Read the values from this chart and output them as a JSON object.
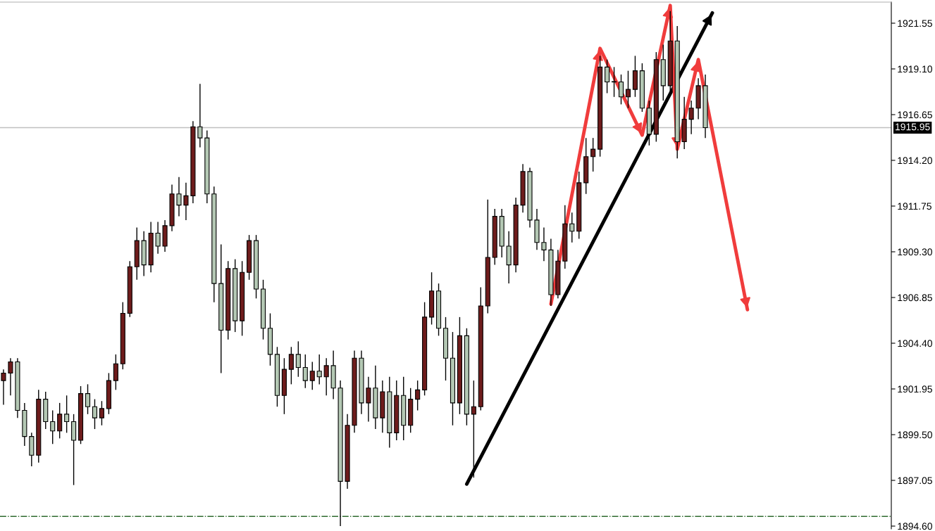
{
  "chart_data": {
    "type": "candlestick",
    "categories": [
      null,
      null,
      null,
      null,
      null,
      null,
      null,
      null,
      null,
      null,
      null,
      null,
      null,
      null,
      null,
      null,
      null,
      null,
      null,
      null,
      null,
      null,
      null,
      null,
      null,
      null,
      null,
      null,
      null,
      null,
      null,
      null,
      null,
      null,
      null,
      null,
      null,
      null,
      null,
      null,
      null,
      null,
      null,
      null,
      null,
      null,
      null,
      null,
      null,
      null,
      null,
      null,
      null,
      null,
      null,
      null,
      null,
      null,
      null,
      null,
      null,
      null,
      null,
      null,
      null,
      null,
      null,
      null,
      null,
      null,
      null,
      null,
      null,
      null,
      null,
      null,
      null,
      null,
      null,
      null,
      null,
      null,
      null,
      null,
      null,
      null,
      null,
      null,
      null,
      null,
      null,
      null,
      null,
      null,
      null,
      null,
      null,
      null,
      null,
      null,
      null,
      null,
      null,
      null,
      null,
      null,
      null,
      null,
      null,
      null,
      null,
      null,
      null,
      null,
      null,
      null,
      null,
      null,
      null,
      null,
      null,
      null,
      null,
      null,
      null,
      null,
      null
    ],
    "ohlc": [
      [
        1902.4,
        1903.0,
        1901.1,
        1902.8
      ],
      [
        1902.8,
        1903.6,
        1901.6,
        1903.4
      ],
      [
        1903.4,
        1903.6,
        1900.4,
        1900.8
      ],
      [
        1900.8,
        1901.2,
        1898.9,
        1899.4
      ],
      [
        1899.4,
        1899.6,
        1897.8,
        1898.4
      ],
      [
        1898.4,
        1901.9,
        1898.0,
        1901.4
      ],
      [
        1901.4,
        1901.8,
        1899.8,
        1900.2
      ],
      [
        1900.2,
        1900.8,
        1899.0,
        1899.7
      ],
      [
        1899.7,
        1901.2,
        1899.3,
        1900.6
      ],
      [
        1900.6,
        1901.6,
        1899.6,
        1900.2
      ],
      [
        1900.2,
        1900.6,
        1896.8,
        1899.2
      ],
      [
        1899.2,
        1902.1,
        1899.0,
        1901.7
      ],
      [
        1901.7,
        1902.2,
        1900.6,
        1901.0
      ],
      [
        1901.0,
        1901.4,
        1899.8,
        1900.4
      ],
      [
        1900.4,
        1901.3,
        1900.0,
        1900.9
      ],
      [
        1900.9,
        1902.8,
        1900.6,
        1902.4
      ],
      [
        1902.4,
        1903.8,
        1901.9,
        1903.3
      ],
      [
        1903.3,
        1906.6,
        1903.0,
        1906.0
      ],
      [
        1906.0,
        1908.8,
        1905.8,
        1908.5
      ],
      [
        1908.5,
        1910.6,
        1907.8,
        1909.9
      ],
      [
        1909.9,
        1910.4,
        1908.0,
        1908.6
      ],
      [
        1908.6,
        1910.9,
        1908.2,
        1910.3
      ],
      [
        1910.3,
        1910.9,
        1909.2,
        1909.6
      ],
      [
        1909.6,
        1911.0,
        1909.3,
        1910.7
      ],
      [
        1910.7,
        1912.9,
        1910.4,
        1912.4
      ],
      [
        1912.4,
        1913.3,
        1911.2,
        1911.8
      ],
      [
        1911.8,
        1913.0,
        1911.0,
        1912.3
      ],
      [
        1912.3,
        1916.3,
        1911.9,
        1916.0
      ],
      [
        1916.0,
        1918.3,
        1914.9,
        1915.4
      ],
      [
        1915.4,
        1915.8,
        1911.9,
        1912.4
      ],
      [
        1912.4,
        1912.8,
        1906.6,
        1907.6
      ],
      [
        1907.6,
        1909.7,
        1902.8,
        1905.1
      ],
      [
        1905.1,
        1908.8,
        1904.6,
        1908.4
      ],
      [
        1908.4,
        1908.9,
        1905.0,
        1905.6
      ],
      [
        1905.6,
        1908.8,
        1904.8,
        1908.2
      ],
      [
        1908.2,
        1910.2,
        1907.8,
        1909.9
      ],
      [
        1909.9,
        1910.2,
        1906.8,
        1907.3
      ],
      [
        1907.3,
        1907.8,
        1904.6,
        1905.2
      ],
      [
        1905.2,
        1906.0,
        1903.2,
        1903.8
      ],
      [
        1903.8,
        1904.2,
        1901.0,
        1901.6
      ],
      [
        1901.6,
        1903.6,
        1900.6,
        1903.0
      ],
      [
        1903.0,
        1904.2,
        1902.2,
        1903.8
      ],
      [
        1903.8,
        1904.5,
        1902.6,
        1903.1
      ],
      [
        1903.1,
        1903.8,
        1902.0,
        1902.4
      ],
      [
        1902.4,
        1903.4,
        1901.9,
        1902.9
      ],
      [
        1902.9,
        1903.8,
        1902.2,
        1902.6
      ],
      [
        1902.6,
        1903.6,
        1901.6,
        1903.2
      ],
      [
        1903.2,
        1904.0,
        1901.4,
        1902.0
      ],
      [
        1902.0,
        1902.4,
        1894.6,
        1897.0
      ],
      [
        1897.0,
        1900.6,
        1896.6,
        1900.0
      ],
      [
        1900.0,
        1904.0,
        1899.6,
        1903.6
      ],
      [
        1903.6,
        1904.0,
        1900.6,
        1901.2
      ],
      [
        1901.2,
        1902.6,
        1900.2,
        1902.0
      ],
      [
        1902.0,
        1903.2,
        1899.8,
        1900.4
      ],
      [
        1900.4,
        1902.4,
        1899.6,
        1901.8
      ],
      [
        1901.8,
        1902.6,
        1898.8,
        1899.6
      ],
      [
        1899.6,
        1902.4,
        1899.2,
        1901.6
      ],
      [
        1901.6,
        1902.6,
        1899.2,
        1900.0
      ],
      [
        1900.0,
        1902.0,
        1899.6,
        1901.4
      ],
      [
        1901.4,
        1902.4,
        1900.8,
        1901.9
      ],
      [
        1901.9,
        1906.6,
        1901.6,
        1905.8
      ],
      [
        1905.8,
        1908.2,
        1905.4,
        1907.2
      ],
      [
        1907.2,
        1907.6,
        1904.8,
        1905.2
      ],
      [
        1905.2,
        1905.8,
        1902.4,
        1903.6
      ],
      [
        1903.6,
        1905.0,
        1900.0,
        1901.2
      ],
      [
        1901.2,
        1905.8,
        1900.6,
        1904.8
      ],
      [
        1904.8,
        1905.2,
        1900.0,
        1900.6
      ],
      [
        1900.6,
        1902.4,
        1897.2,
        1901.0
      ],
      [
        1901.0,
        1907.4,
        1900.8,
        1906.4
      ],
      [
        1906.4,
        1912.1,
        1906.0,
        1909.0
      ],
      [
        1909.0,
        1911.6,
        1908.6,
        1911.2
      ],
      [
        1911.2,
        1911.6,
        1909.0,
        1909.6
      ],
      [
        1909.6,
        1910.4,
        1907.6,
        1908.6
      ],
      [
        1908.6,
        1912.2,
        1908.2,
        1911.8
      ],
      [
        1911.8,
        1914.0,
        1911.4,
        1913.6
      ],
      [
        1913.6,
        1913.8,
        1910.6,
        1911.0
      ],
      [
        1911.0,
        1911.6,
        1909.4,
        1909.8
      ],
      [
        1909.8,
        1910.6,
        1908.8,
        1909.4
      ],
      [
        1909.4,
        1910.0,
        1906.4,
        1907.0
      ],
      [
        1907.0,
        1909.4,
        1906.8,
        1908.8
      ],
      [
        1908.8,
        1911.8,
        1908.4,
        1910.8
      ],
      [
        1910.8,
        1911.4,
        1909.8,
        1910.4
      ],
      [
        1910.4,
        1913.6,
        1910.0,
        1913.0
      ],
      [
        1913.0,
        1915.4,
        1912.4,
        1914.4
      ],
      [
        1914.4,
        1915.4,
        1913.6,
        1914.8
      ],
      [
        1914.8,
        1919.8,
        1914.4,
        1919.2
      ],
      [
        1919.2,
        1919.6,
        1917.8,
        1918.4
      ],
      [
        1918.4,
        1919.2,
        1917.6,
        1918.4
      ],
      [
        1918.4,
        1918.8,
        1917.2,
        1917.6
      ],
      [
        1917.6,
        1919.0,
        1917.0,
        1918.0
      ],
      [
        1918.0,
        1919.8,
        1917.6,
        1919.0
      ],
      [
        1919.0,
        1919.4,
        1916.8,
        1917.0
      ],
      [
        1917.0,
        1917.4,
        1915.0,
        1915.6
      ],
      [
        1915.6,
        1920.0,
        1915.2,
        1919.6
      ],
      [
        1919.6,
        1920.4,
        1917.4,
        1918.2
      ],
      [
        1918.2,
        1922.2,
        1917.8,
        1920.6
      ],
      [
        1920.6,
        1921.4,
        1914.3,
        1915.2
      ],
      [
        1915.2,
        1917.6,
        1914.8,
        1916.4
      ],
      [
        1916.4,
        1917.4,
        1915.6,
        1917.0
      ],
      [
        1917.0,
        1918.6,
        1916.4,
        1918.2
      ],
      [
        1918.2,
        1918.8,
        1915.4,
        1915.95
      ],
      null,
      null,
      null,
      null,
      null,
      null,
      null,
      null,
      null,
      null,
      null,
      null,
      null,
      null,
      null,
      null,
      null,
      null,
      null,
      null,
      null,
      null,
      null,
      null,
      null,
      null
    ],
    "colors": [
      "#6e1c1c",
      "#6e1c1c",
      "#b4c8b4",
      "#b4c8b4",
      "#b4c8b4",
      "#6e1c1c",
      "#b4c8b4",
      "#b4c8b4",
      "#6e1c1c",
      "#b4c8b4",
      "#b4c8b4",
      "#6e1c1c",
      "#b4c8b4",
      "#b4c8b4",
      "#6e1c1c",
      "#6e1c1c",
      "#6e1c1c",
      "#6e1c1c",
      "#6e1c1c",
      "#6e1c1c",
      "#b4c8b4",
      "#6e1c1c",
      "#b4c8b4",
      "#6e1c1c",
      "#6e1c1c",
      "#b4c8b4",
      "#6e1c1c",
      "#6e1c1c",
      "#b4c8b4",
      "#b4c8b4",
      "#b4c8b4",
      "#b4c8b4",
      "#6e1c1c",
      "#b4c8b4",
      "#6e1c1c",
      "#6e1c1c",
      "#b4c8b4",
      "#b4c8b4",
      "#b4c8b4",
      "#b4c8b4",
      "#6e1c1c",
      "#6e1c1c",
      "#b4c8b4",
      "#b4c8b4",
      "#6e1c1c",
      "#b4c8b4",
      "#6e1c1c",
      "#b4c8b4",
      "#b4c8b4",
      "#6e1c1c",
      "#6e1c1c",
      "#b4c8b4",
      "#6e1c1c",
      "#b4c8b4",
      "#6e1c1c",
      "#b4c8b4",
      "#6e1c1c",
      "#b4c8b4",
      "#6e1c1c",
      "#6e1c1c",
      "#6e1c1c",
      "#6e1c1c",
      "#b4c8b4",
      "#b4c8b4",
      "#b4c8b4",
      "#6e1c1c",
      "#b4c8b4",
      "#6e1c1c",
      "#6e1c1c",
      "#6e1c1c",
      "#6e1c1c",
      "#b4c8b4",
      "#b4c8b4",
      "#6e1c1c",
      "#6e1c1c",
      "#b4c8b4",
      "#b4c8b4",
      "#b4c8b4",
      "#b4c8b4",
      "#6e1c1c",
      "#6e1c1c",
      "#b4c8b4",
      "#6e1c1c",
      "#6e1c1c",
      "#6e1c1c",
      "#6e1c1c",
      "#b4c8b4",
      "#6e1c1c",
      "#b4c8b4",
      "#6e1c1c",
      "#6e1c1c",
      "#b4c8b4",
      "#b4c8b4",
      "#6e1c1c",
      "#b4c8b4",
      "#6e1c1c",
      "#b4c8b4",
      "#6e1c1c",
      "#6e1c1c",
      "#6e1c1c",
      "#b4c8b4",
      null,
      null,
      null,
      null,
      null,
      null,
      null,
      null,
      null,
      null,
      null,
      null,
      null,
      null,
      null,
      null,
      null,
      null,
      null,
      null,
      null,
      null,
      null,
      null,
      null,
      null
    ],
    "series": [
      {
        "type": "line",
        "color": "#000000",
        "values": [
          null,
          null,
          null,
          null,
          null,
          null,
          null,
          null,
          null,
          null,
          null,
          null,
          null,
          null,
          null,
          null,
          null,
          null,
          null,
          null,
          null,
          null,
          null,
          null,
          null,
          null,
          null,
          null,
          null,
          null,
          null,
          null,
          null,
          null,
          null,
          null,
          null,
          null,
          null,
          null,
          null,
          null,
          null,
          null,
          null,
          null,
          null,
          null,
          null,
          null,
          null,
          null,
          null,
          null,
          null,
          null,
          null,
          null,
          null,
          null,
          null,
          null,
          null,
          null,
          null,
          null,
          1896.85,
          null,
          null,
          null,
          null,
          null,
          null,
          null,
          null,
          null,
          null,
          null,
          null,
          null,
          null,
          null,
          null,
          null,
          null,
          null,
          null,
          null,
          null,
          null,
          null,
          null,
          null,
          null,
          null,
          null,
          null,
          null,
          null,
          null,
          null,
          1922.1,
          null,
          null,
          null,
          null,
          null,
          null,
          null,
          null,
          null,
          null,
          null,
          null,
          null,
          null,
          null,
          null,
          null,
          null,
          null,
          null,
          null,
          null,
          null,
          null,
          null
        ]
      },
      {
        "type": "line",
        "color": "#f03c3c",
        "values": [
          null,
          null,
          null,
          null,
          null,
          null,
          null,
          null,
          null,
          null,
          null,
          null,
          null,
          null,
          null,
          null,
          null,
          null,
          null,
          null,
          null,
          null,
          null,
          null,
          null,
          null,
          null,
          null,
          null,
          null,
          null,
          null,
          null,
          null,
          null,
          null,
          null,
          null,
          null,
          null,
          null,
          null,
          null,
          null,
          null,
          null,
          null,
          null,
          null,
          null,
          null,
          null,
          null,
          null,
          null,
          null,
          null,
          null,
          null,
          null,
          null,
          null,
          null,
          null,
          null,
          null,
          null,
          null,
          null,
          null,
          null,
          null,
          null,
          null,
          null,
          null,
          null,
          null,
          1906.5,
          null,
          null,
          null,
          null,
          null,
          null,
          1920.2,
          null,
          null,
          null,
          null,
          null,
          1915.55,
          null,
          null,
          null,
          1922.5,
          1914.8,
          null,
          null,
          1919.6,
          null,
          null,
          null,
          null,
          null,
          null,
          1906.2,
          null,
          null,
          null,
          null,
          null,
          null,
          null,
          null,
          null,
          null,
          null,
          null,
          null,
          null,
          null,
          null,
          null,
          null,
          null,
          null
        ]
      }
    ],
    "ylim": [
      1894.45,
      1922.68
    ],
    "yticks": [
      {
        "value": 1894.6,
        "label": "1894.60"
      },
      {
        "value": 1897.05,
        "label": "1897.05"
      },
      {
        "value": 1899.5,
        "label": "1899.50"
      },
      {
        "value": 1901.95,
        "label": "1901.95"
      },
      {
        "value": 1904.4,
        "label": "1904.40"
      },
      {
        "value": 1906.85,
        "label": "1906.85"
      },
      {
        "value": 1909.3,
        "label": "1909.30"
      },
      {
        "value": 1911.75,
        "label": "1911.75"
      },
      {
        "value": 1914.2,
        "label": "1914.20"
      },
      {
        "value": 1916.65,
        "label": "1916.65"
      },
      {
        "value": 1919.1,
        "label": "1919.10"
      },
      {
        "value": 1921.55,
        "label": "1921.55"
      }
    ],
    "ref_lines": [
      {
        "axis": "y",
        "value": 1915.95,
        "label": "1915.95",
        "color": "#c0c0c0",
        "line_style": "solid"
      },
      {
        "axis": "y",
        "value": 1895.12,
        "color": "#2e6b2e",
        "line_style": "dashdot"
      }
    ],
    "grid": false,
    "legend": false
  }
}
